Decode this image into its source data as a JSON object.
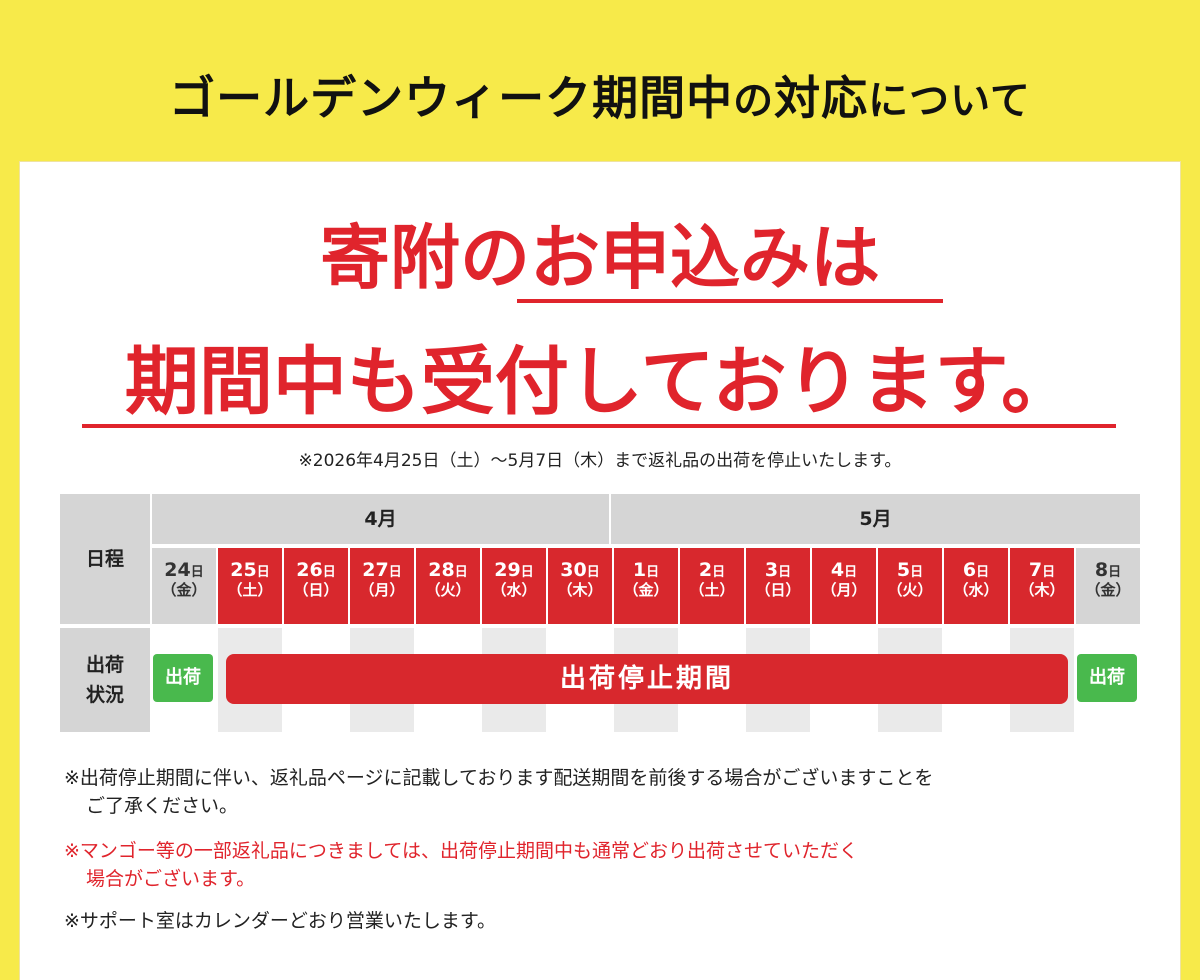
{
  "title": {
    "main": "ゴールデンウィーク期間中",
    "mid": "の",
    "bold2": "対応",
    "small": "について"
  },
  "headline": {
    "line1": "寄附のお申込みは",
    "line2": "期間中も受付しております。"
  },
  "top_note": "※2026年4月25日（土）〜5月7日（木）まで返礼品の出荷を停止いたします。",
  "schedule": {
    "row_label_schedule": "日程",
    "row_label_status_1": "出荷",
    "row_label_status_2": "状況",
    "month_april": "4月",
    "month_may": "5月",
    "day_unit": "日",
    "days": [
      {
        "num": "24",
        "wd": "（金）"
      },
      {
        "num": "25",
        "wd": "（土）"
      },
      {
        "num": "26",
        "wd": "（日）"
      },
      {
        "num": "27",
        "wd": "（月）"
      },
      {
        "num": "28",
        "wd": "（火）"
      },
      {
        "num": "29",
        "wd": "（水）"
      },
      {
        "num": "30",
        "wd": "（木）"
      },
      {
        "num": "1",
        "wd": "（金）"
      },
      {
        "num": "2",
        "wd": "（土）"
      },
      {
        "num": "3",
        "wd": "（日）"
      },
      {
        "num": "4",
        "wd": "（月）"
      },
      {
        "num": "5",
        "wd": "（火）"
      },
      {
        "num": "6",
        "wd": "（水）"
      },
      {
        "num": "7",
        "wd": "（木）"
      },
      {
        "num": "8",
        "wd": "（金）"
      }
    ],
    "ship_label": "出荷",
    "stop_label": "出荷停止期間"
  },
  "notes": {
    "n1_a": "※出荷停止期間に伴い、返礼品ページに記載しております配送期間を前後する場合がございますことを",
    "n1_b": "ご了承ください。",
    "n2_a": "※マンゴー等の一部返礼品につきましては、出荷停止期間中も通常どおり出荷させていただく",
    "n2_b": "場合がございます。",
    "n3": "※サポート室はカレンダーどおり営業いたします。"
  },
  "colors": {
    "background": "#f7ea4a",
    "accent_red": "#d8282d",
    "ship_green": "#49b94d",
    "cell_gray": "#d5d5d5"
  }
}
